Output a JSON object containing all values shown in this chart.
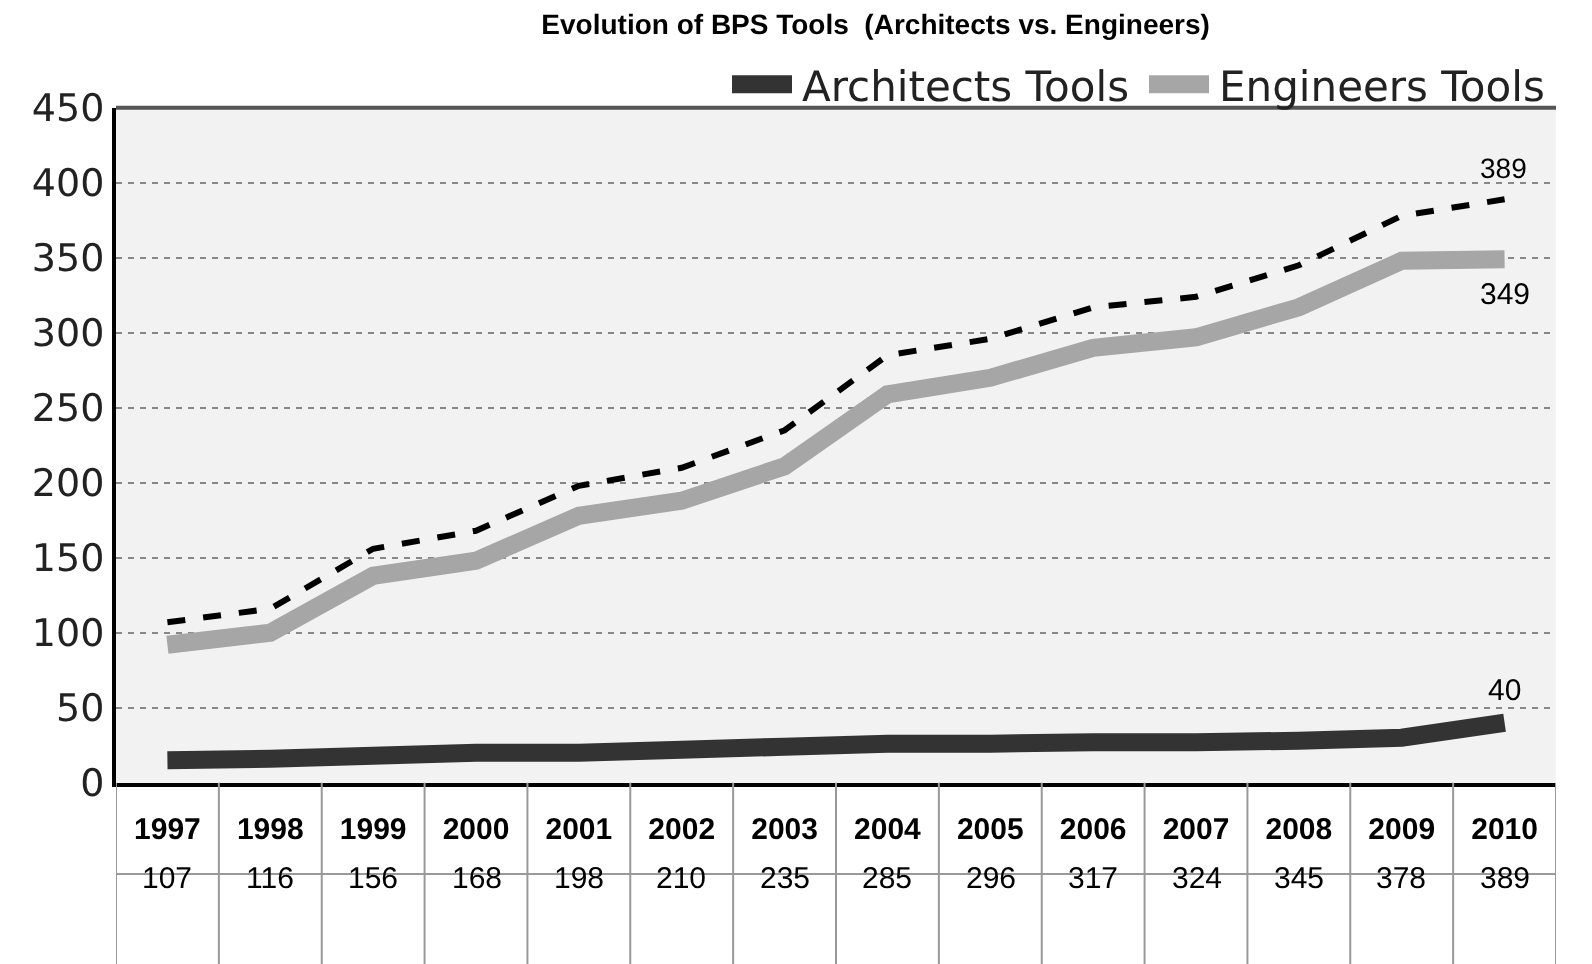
{
  "chart_data": {
    "type": "line",
    "title": "Evolution of BPS Tools  (Architects vs. Engineers)",
    "categories": [
      "1997",
      "1998",
      "1999",
      "2000",
      "2001",
      "2002",
      "2003",
      "2004",
      "2005",
      "2006",
      "2007",
      "2008",
      "2009",
      "2010"
    ],
    "series": [
      {
        "name": "Architects Tools",
        "color": "#333333",
        "values": [
          15,
          16,
          18,
          20,
          20,
          22,
          24,
          26,
          26,
          27,
          27,
          28,
          30,
          40
        ],
        "value_labels": [
          null,
          null,
          null,
          null,
          null,
          null,
          null,
          null,
          null,
          null,
          null,
          null,
          null,
          "40"
        ]
      },
      {
        "name": "Engineers Tools",
        "color": "#a6a6a6",
        "values": [
          92,
          100,
          138,
          148,
          178,
          188,
          211,
          259,
          270,
          290,
          297,
          317,
          348,
          349
        ],
        "value_labels": [
          null,
          null,
          null,
          null,
          null,
          null,
          null,
          null,
          null,
          null,
          null,
          null,
          null,
          "349"
        ]
      },
      {
        "color": "#000000",
        "line_style": "dashed",
        "values": [
          107,
          116,
          156,
          168,
          198,
          210,
          235,
          285,
          296,
          317,
          324,
          345,
          378,
          389
        ],
        "value_labels": [
          "107",
          "116",
          "156",
          "168",
          "198",
          "210",
          "235",
          "285",
          "296",
          "317",
          "324",
          "345",
          "378",
          "389"
        ]
      }
    ],
    "ylim": [
      0,
      450
    ],
    "yticks": [
      0,
      50,
      100,
      150,
      200,
      250,
      300,
      350,
      400,
      450
    ],
    "grid": "y",
    "legend": "top right",
    "line_style": "solid",
    "marker": "none"
  }
}
